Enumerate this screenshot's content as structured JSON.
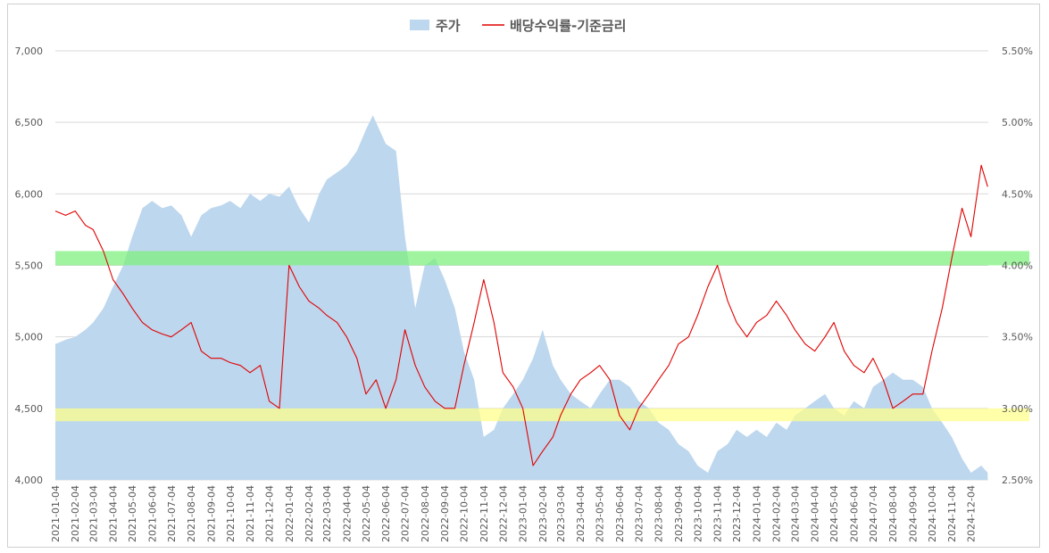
{
  "chart_data": {
    "type": "area+line",
    "title": "",
    "legend": {
      "placement": "top-center",
      "items": [
        {
          "label": "주가",
          "kind": "area",
          "color": "#bdd7ee"
        },
        {
          "label": "배당수익률-기준금리",
          "kind": "line",
          "color": "#e00000"
        }
      ]
    },
    "y_left": {
      "min": 4000,
      "max": 7000,
      "ticks": [
        "4,000",
        "4,500",
        "5,000",
        "5,500",
        "6,000",
        "6,500",
        "7,000"
      ],
      "tick_values": [
        4000,
        4500,
        5000,
        5500,
        6000,
        6500,
        7000
      ]
    },
    "y_right": {
      "min": 2.5,
      "max": 5.5,
      "ticks": [
        "2.50%",
        "3.00%",
        "3.50%",
        "4.00%",
        "4.50%",
        "5.00%",
        "5.50%"
      ],
      "tick_values": [
        2.5,
        3.0,
        3.5,
        4.0,
        4.5,
        5.0,
        5.5
      ]
    },
    "grid": true,
    "x_ticks": [
      "2021-01-04",
      "2021-02-04",
      "2021-03-04",
      "2021-04-04",
      "2021-05-04",
      "2021-06-04",
      "2021-07-04",
      "2021-08-04",
      "2021-09-04",
      "2021-10-04",
      "2021-11-04",
      "2021-12-04",
      "2022-01-04",
      "2022-02-04",
      "2022-03-04",
      "2022-04-04",
      "2022-05-04",
      "2022-06-04",
      "2022-07-04",
      "2022-08-04",
      "2022-09-04",
      "2022-10-04",
      "2022-11-04",
      "2022-12-04",
      "2023-01-04",
      "2023-02-04",
      "2023-03-04",
      "2023-04-04",
      "2023-05-04",
      "2023-06-04",
      "2023-07-04",
      "2023-08-04",
      "2023-09-04",
      "2023-10-04",
      "2023-11-04",
      "2023-12-04",
      "2024-01-04",
      "2024-02-04",
      "2024-03-04",
      "2024-04-04",
      "2024-05-04",
      "2024-06-04",
      "2024-07-04",
      "2024-08-04",
      "2024-09-04",
      "2024-10-04",
      "2024-11-04",
      "2024-12-04"
    ],
    "bands": [
      {
        "axis": "left",
        "from": 5500,
        "to": 5600,
        "color": "#7cf07c"
      },
      {
        "axis": "left",
        "from": 4410,
        "to": 4500,
        "color": "#ffff88"
      }
    ],
    "series": [
      {
        "name": "주가",
        "axis": "left",
        "x": [
          "2021-01-04",
          "2021-01-20",
          "2021-02-04",
          "2021-02-20",
          "2021-03-04",
          "2021-03-20",
          "2021-04-04",
          "2021-04-20",
          "2021-05-04",
          "2021-05-20",
          "2021-06-04",
          "2021-06-20",
          "2021-07-04",
          "2021-07-20",
          "2021-08-04",
          "2021-08-20",
          "2021-09-04",
          "2021-09-20",
          "2021-10-04",
          "2021-10-20",
          "2021-11-04",
          "2021-11-20",
          "2021-12-04",
          "2021-12-20",
          "2022-01-04",
          "2022-01-20",
          "2022-02-04",
          "2022-02-20",
          "2022-03-04",
          "2022-03-20",
          "2022-04-04",
          "2022-04-20",
          "2022-05-04",
          "2022-05-15",
          "2022-06-04",
          "2022-06-20",
          "2022-07-04",
          "2022-07-20",
          "2022-08-04",
          "2022-08-20",
          "2022-09-04",
          "2022-09-20",
          "2022-10-04",
          "2022-10-20",
          "2022-11-04",
          "2022-11-20",
          "2022-12-04",
          "2022-12-20",
          "2023-01-04",
          "2023-01-20",
          "2023-02-04",
          "2023-02-20",
          "2023-03-04",
          "2023-03-20",
          "2023-04-04",
          "2023-04-20",
          "2023-05-04",
          "2023-05-20",
          "2023-06-04",
          "2023-06-20",
          "2023-07-04",
          "2023-07-20",
          "2023-08-04",
          "2023-08-20",
          "2023-09-04",
          "2023-09-20",
          "2023-10-04",
          "2023-10-20",
          "2023-11-04",
          "2023-11-20",
          "2023-12-04",
          "2023-12-20",
          "2024-01-04",
          "2024-01-20",
          "2024-02-04",
          "2024-02-20",
          "2024-03-04",
          "2024-03-20",
          "2024-04-04",
          "2024-04-20",
          "2024-05-04",
          "2024-05-20",
          "2024-06-04",
          "2024-06-20",
          "2024-07-04",
          "2024-07-20",
          "2024-08-04",
          "2024-08-20",
          "2024-09-04",
          "2024-09-20",
          "2024-10-04",
          "2024-10-20",
          "2024-11-04",
          "2024-11-20",
          "2024-12-04",
          "2024-12-20",
          "2024-12-30"
        ],
        "values": [
          4950,
          4980,
          5000,
          5050,
          5100,
          5200,
          5350,
          5500,
          5700,
          5900,
          5950,
          5900,
          5920,
          5850,
          5700,
          5850,
          5900,
          5920,
          5950,
          5900,
          6000,
          5950,
          6000,
          5980,
          6050,
          5900,
          5800,
          6000,
          6100,
          6150,
          6200,
          6300,
          6450,
          6550,
          6350,
          6300,
          5700,
          5200,
          5500,
          5550,
          5400,
          5200,
          4900,
          4700,
          4300,
          4350,
          4500,
          4600,
          4700,
          4850,
          5050,
          4800,
          4700,
          4600,
          4550,
          4500,
          4600,
          4700,
          4700,
          4650,
          4550,
          4500,
          4400,
          4350,
          4250,
          4200,
          4100,
          4050,
          4200,
          4250,
          4350,
          4300,
          4350,
          4300,
          4400,
          4350,
          4450,
          4500,
          4550,
          4600,
          4500,
          4450,
          4550,
          4500,
          4650,
          4700,
          4750,
          4700,
          4700,
          4650,
          4500,
          4400,
          4300,
          4150,
          4050,
          4100,
          4050
        ]
      },
      {
        "name": "배당수익률-기준금리",
        "axis": "right",
        "x": [
          "2021-01-04",
          "2021-01-20",
          "2021-02-04",
          "2021-02-20",
          "2021-03-04",
          "2021-03-20",
          "2021-04-04",
          "2021-04-20",
          "2021-05-04",
          "2021-05-20",
          "2021-06-04",
          "2021-06-20",
          "2021-07-04",
          "2021-07-20",
          "2021-08-04",
          "2021-08-20",
          "2021-09-04",
          "2021-09-20",
          "2021-10-04",
          "2021-10-20",
          "2021-11-04",
          "2021-11-20",
          "2021-12-04",
          "2021-12-20",
          "2022-01-04",
          "2022-01-20",
          "2022-02-04",
          "2022-02-20",
          "2022-03-04",
          "2022-03-20",
          "2022-04-04",
          "2022-04-20",
          "2022-05-04",
          "2022-05-20",
          "2022-06-04",
          "2022-06-20",
          "2022-07-04",
          "2022-07-20",
          "2022-08-04",
          "2022-08-20",
          "2022-09-04",
          "2022-09-20",
          "2022-10-04",
          "2022-10-20",
          "2022-11-04",
          "2022-11-20",
          "2022-12-04",
          "2022-12-20",
          "2023-01-04",
          "2023-01-20",
          "2023-02-04",
          "2023-02-20",
          "2023-03-04",
          "2023-03-20",
          "2023-04-04",
          "2023-04-20",
          "2023-05-04",
          "2023-05-20",
          "2023-06-04",
          "2023-06-20",
          "2023-07-04",
          "2023-07-20",
          "2023-08-04",
          "2023-08-20",
          "2023-09-04",
          "2023-09-20",
          "2023-10-04",
          "2023-10-20",
          "2023-11-04",
          "2023-11-20",
          "2023-12-04",
          "2023-12-20",
          "2024-01-04",
          "2024-01-20",
          "2024-02-04",
          "2024-02-20",
          "2024-03-04",
          "2024-03-20",
          "2024-04-04",
          "2024-04-20",
          "2024-05-04",
          "2024-05-20",
          "2024-06-04",
          "2024-06-20",
          "2024-07-04",
          "2024-07-20",
          "2024-08-04",
          "2024-08-20",
          "2024-09-04",
          "2024-09-20",
          "2024-10-04",
          "2024-10-20",
          "2024-11-04",
          "2024-11-20",
          "2024-12-04",
          "2024-12-20",
          "2024-12-30"
        ],
        "values": [
          4.38,
          4.35,
          4.38,
          4.28,
          4.25,
          4.1,
          3.9,
          3.8,
          3.7,
          3.6,
          3.55,
          3.52,
          3.5,
          3.55,
          3.6,
          3.4,
          3.35,
          3.35,
          3.32,
          3.3,
          3.25,
          3.3,
          3.05,
          3.0,
          4.0,
          3.85,
          3.75,
          3.7,
          3.65,
          3.6,
          3.5,
          3.35,
          3.1,
          3.2,
          3.0,
          3.2,
          3.55,
          3.3,
          3.15,
          3.05,
          3.0,
          3.0,
          3.3,
          3.6,
          3.9,
          3.6,
          3.25,
          3.15,
          3.0,
          2.6,
          2.7,
          2.8,
          2.95,
          3.1,
          3.2,
          3.25,
          3.3,
          3.2,
          2.95,
          2.85,
          3.0,
          3.1,
          3.2,
          3.3,
          3.45,
          3.5,
          3.65,
          3.85,
          4.0,
          3.75,
          3.6,
          3.5,
          3.6,
          3.65,
          3.75,
          3.65,
          3.55,
          3.45,
          3.4,
          3.5,
          3.6,
          3.4,
          3.3,
          3.25,
          3.35,
          3.2,
          3.0,
          3.05,
          3.1,
          3.1,
          3.4,
          3.7,
          4.05,
          4.4,
          4.2,
          4.7,
          4.55
        ]
      }
    ]
  }
}
